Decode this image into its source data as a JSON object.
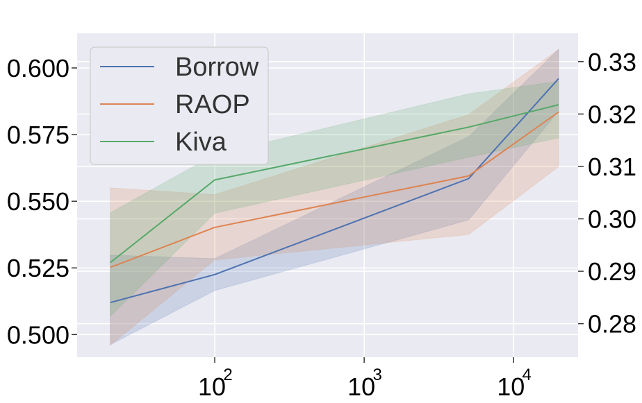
{
  "chart_data": {
    "type": "line",
    "x_scale": "log",
    "xlim": [
      12,
      27000
    ],
    "x_ticks": [
      {
        "value": 100,
        "base": "10",
        "exp": "2"
      },
      {
        "value": 1000,
        "base": "10",
        "exp": "3"
      },
      {
        "value": 10000,
        "base": "10",
        "exp": "4"
      }
    ],
    "y_left": {
      "ylim": [
        0.4915,
        0.613
      ],
      "ticks": [
        {
          "value": 0.5,
          "label": "0.500"
        },
        {
          "value": 0.525,
          "label": "0.525"
        },
        {
          "value": 0.55,
          "label": "0.550"
        },
        {
          "value": 0.575,
          "label": "0.575"
        },
        {
          "value": 0.6,
          "label": "0.600"
        }
      ]
    },
    "y_right": {
      "ylim": [
        0.2736,
        0.3354
      ],
      "ticks": [
        {
          "value": 0.28,
          "label": "0.28"
        },
        {
          "value": 0.29,
          "label": "0.29"
        },
        {
          "value": 0.3,
          "label": "0.30"
        },
        {
          "value": 0.31,
          "label": "0.31"
        },
        {
          "value": 0.32,
          "label": "0.32"
        },
        {
          "value": 0.33,
          "label": "0.33"
        }
      ]
    },
    "grid": true,
    "legend_position": "top-left",
    "series": [
      {
        "name": "Borrow",
        "color": "#4c72b0",
        "x": [
          20,
          100,
          5000,
          20000
        ],
        "y": [
          0.512,
          0.5225,
          0.5585,
          0.596
        ],
        "lower": [
          0.4962,
          0.5165,
          0.543,
          0.5838
        ],
        "upper": [
          0.5298,
          0.5285,
          0.5742,
          0.607
        ]
      },
      {
        "name": "RAOP",
        "color": "#dd8452",
        "x": [
          20,
          100,
          5000,
          20000
        ],
        "y": [
          0.5252,
          0.5402,
          0.5595,
          0.5835
        ],
        "lower": [
          0.496,
          0.528,
          0.5375,
          0.563
        ],
        "upper": [
          0.555,
          0.5525,
          0.5825,
          0.607
        ]
      },
      {
        "name": "Kiva",
        "color": "#55a868",
        "x": [
          20,
          100,
          5000,
          20000
        ],
        "y": [
          0.527,
          0.558,
          0.5778,
          0.5862
        ],
        "lower": [
          0.5068,
          0.5455,
          0.5665,
          0.5738
        ],
        "upper": [
          0.5457,
          0.5675,
          0.5903,
          0.595
        ]
      }
    ]
  }
}
